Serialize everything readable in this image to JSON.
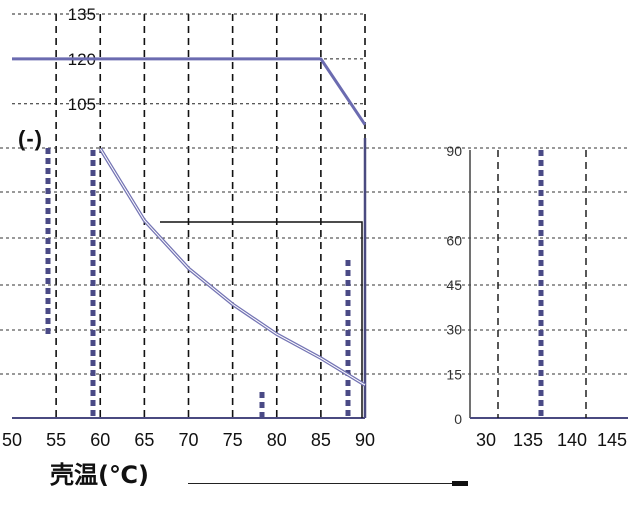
{
  "chart_data": [
    {
      "type": "line",
      "title": "",
      "xlabel": "壳温(℃)",
      "ylabel": "",
      "x_tick_labels": [
        "50",
        "55",
        "60",
        "65",
        "70",
        "75",
        "80",
        "85",
        "90"
      ],
      "y_tick_labels": [
        "135",
        "120",
        "105"
      ],
      "y_tick_values": [
        135,
        120,
        105
      ],
      "xlim": [
        150,
        190
      ],
      "ylim": [
        0,
        135
      ],
      "grid": true,
      "series": [
        {
          "name": "",
          "color": "#6b6bb0",
          "x": [
            150,
            155,
            160,
            165,
            170,
            175,
            180,
            185,
            190
          ],
          "y": [
            120,
            120,
            120,
            120,
            120,
            120,
            120,
            120,
            98
          ]
        },
        {
          "name": "",
          "color": "#7474b4",
          "x": [
            160,
            165,
            170,
            175,
            180,
            185,
            190
          ],
          "y": [
            90,
            66,
            50,
            38,
            28,
            20,
            11
          ]
        }
      ]
    },
    {
      "type": "line",
      "title": "",
      "x_tick_labels": [
        "30",
        "135",
        "140",
        "145"
      ],
      "y_tick_labels": [
        "90",
        "60",
        "45",
        "30",
        "15",
        "0"
      ],
      "y_tick_values": [
        90,
        60,
        45,
        30,
        15,
        0
      ],
      "ylim": [
        0,
        90
      ],
      "grid": true,
      "series": []
    }
  ],
  "overlay": {
    "ylabel_fragment": "(-)"
  }
}
